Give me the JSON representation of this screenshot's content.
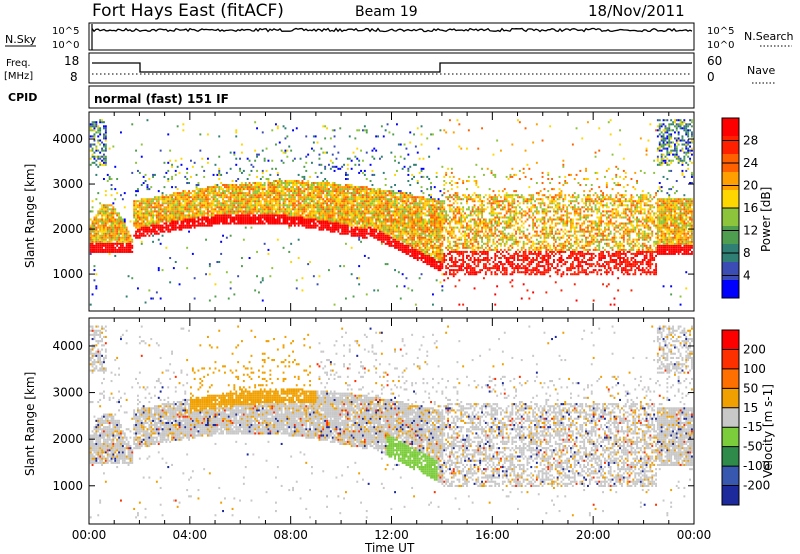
{
  "header": {
    "station": "Fort Hays East (fitACF)",
    "beam": "Beam 19",
    "date": "18/Nov/2011"
  },
  "top_panel": {
    "left_label": "N.Sky",
    "right_label": "N.Search",
    "left_ticks": [
      "10^5",
      "10^0"
    ],
    "right_ticks": [
      "10^5",
      "10^0"
    ]
  },
  "freq_panel": {
    "left_label_line1": "Freq.",
    "left_label_line2": "[MHz]",
    "left_ticks": [
      "18",
      "8"
    ],
    "right_label": "Nave",
    "right_ticks": [
      "60",
      "0"
    ]
  },
  "cpid": {
    "label": "CPID",
    "value": "normal (fast) 151 IF"
  },
  "chart_data": [
    {
      "type": "heatmap",
      "ylabel": "Slant Range [km]",
      "ylim": [
        180,
        4600
      ],
      "yticks": [
        "1000",
        "2000",
        "3000",
        "4000"
      ],
      "xlim": [
        0,
        24
      ],
      "colorbar": {
        "label": "Power [dB]",
        "range": [
          0,
          32
        ],
        "ticks": [
          "4",
          "8",
          "12",
          "16",
          "20",
          "24",
          "28"
        ],
        "colors": [
          "#0000ff",
          "#3b4cb4",
          "#2f7f74",
          "#4f9e50",
          "#8cc43c",
          "#ffd700",
          "#ffa000",
          "#ff6000",
          "#ff2000",
          "#ff0000"
        ]
      }
    },
    {
      "type": "heatmap",
      "ylabel": "Slant Range [km]",
      "ylim": [
        180,
        4600
      ],
      "yticks": [
        "1000",
        "2000",
        "3000",
        "4000"
      ],
      "xlim": [
        0,
        24
      ],
      "xticks": [
        "00:00",
        "04:00",
        "08:00",
        "12:00",
        "16:00",
        "20:00",
        "00:00"
      ],
      "xlabel": "Time UT",
      "colorbar": {
        "label": "Velocity [m s-1]",
        "ticks": [
          "200",
          "100",
          "50",
          "15",
          "-15",
          "-50",
          "-100",
          "-200"
        ],
        "colors": [
          "#1c2a9c",
          "#3858b0",
          "#2e8b4a",
          "#7ccd3c",
          "#c8c8c8",
          "#f0a000",
          "#ff7000",
          "#ff3000",
          "#ff0000"
        ]
      }
    }
  ]
}
